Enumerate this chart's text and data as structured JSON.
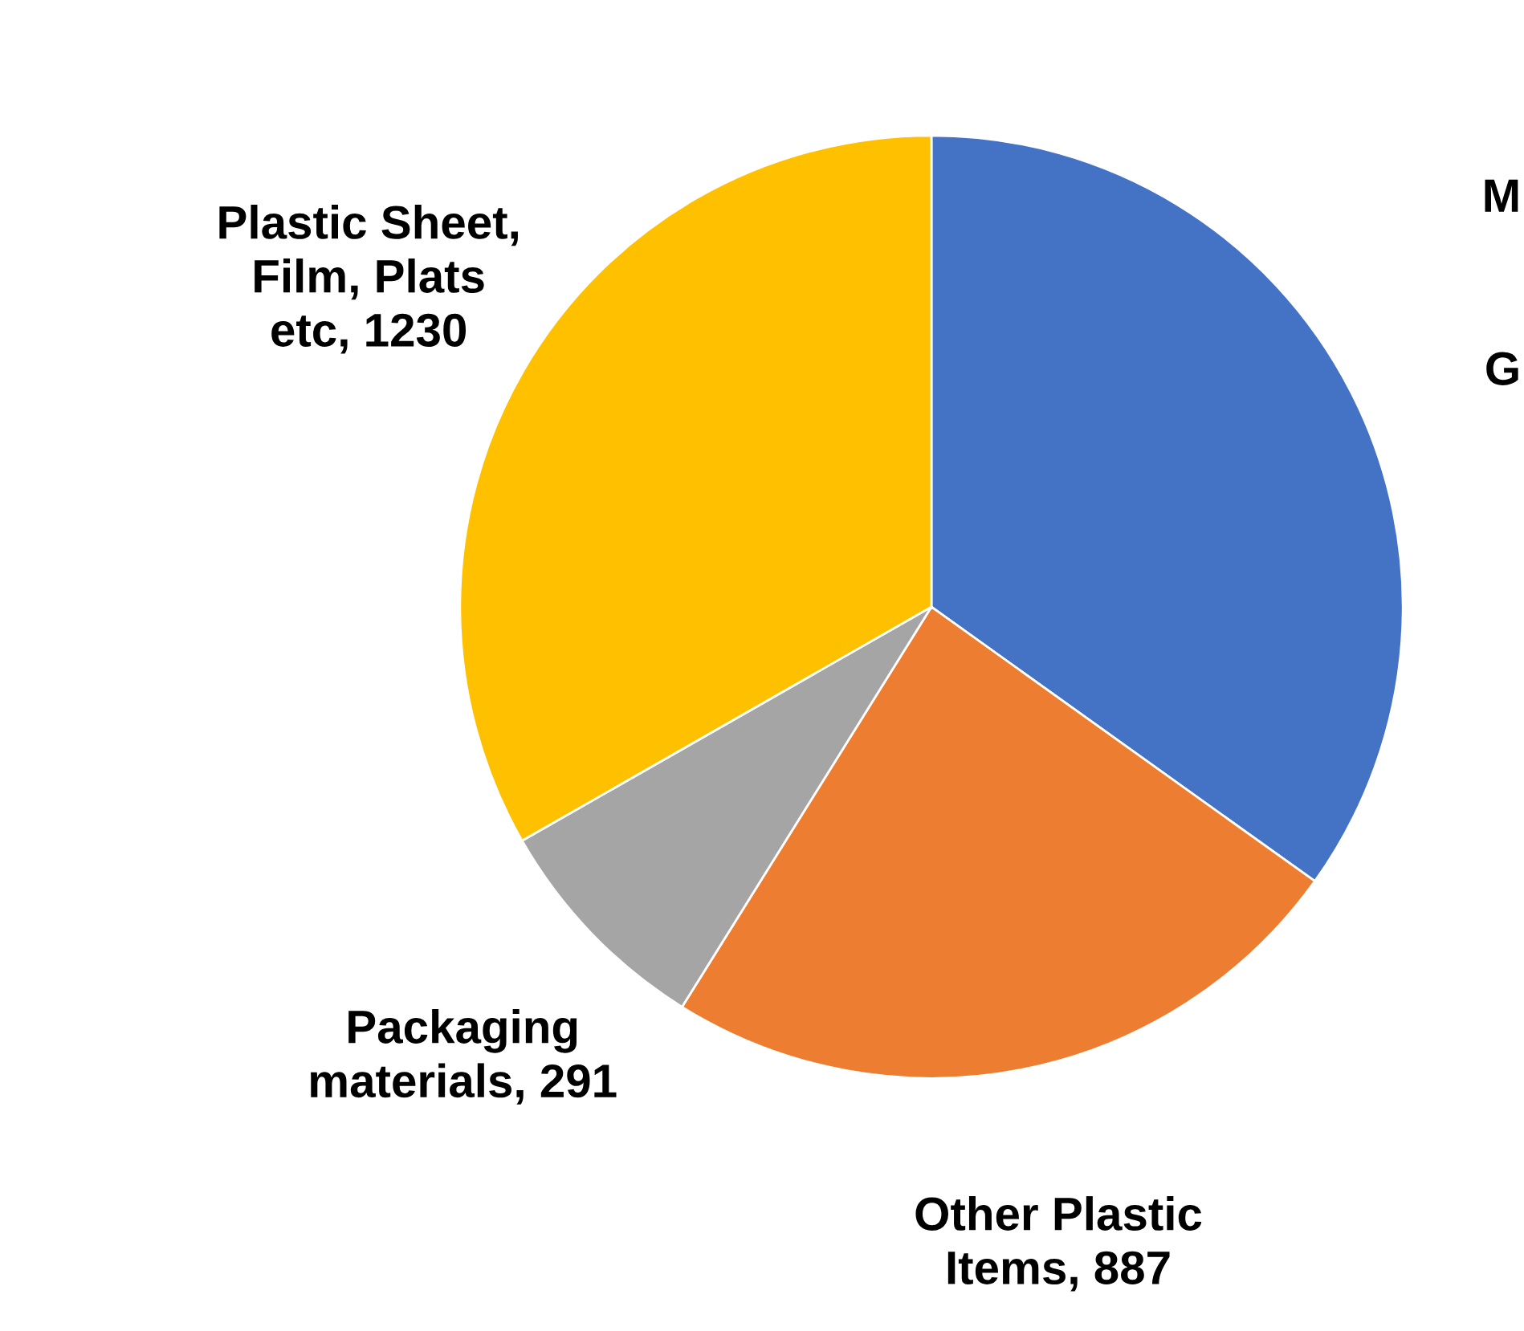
{
  "chart_data": {
    "type": "pie",
    "categories": [
      null,
      "Other Plastic Items, 887",
      "Packaging materials, 291",
      "Plastic Sheet, Film, Plats etc, 1230"
    ],
    "values": [
      1290,
      887,
      291,
      1230
    ],
    "colors": [
      "#4472c4",
      "#ed7d31",
      "#a5a5a5",
      "#ffc000"
    ],
    "annotations": [
      "M",
      "G"
    ],
    "legend": false
  }
}
